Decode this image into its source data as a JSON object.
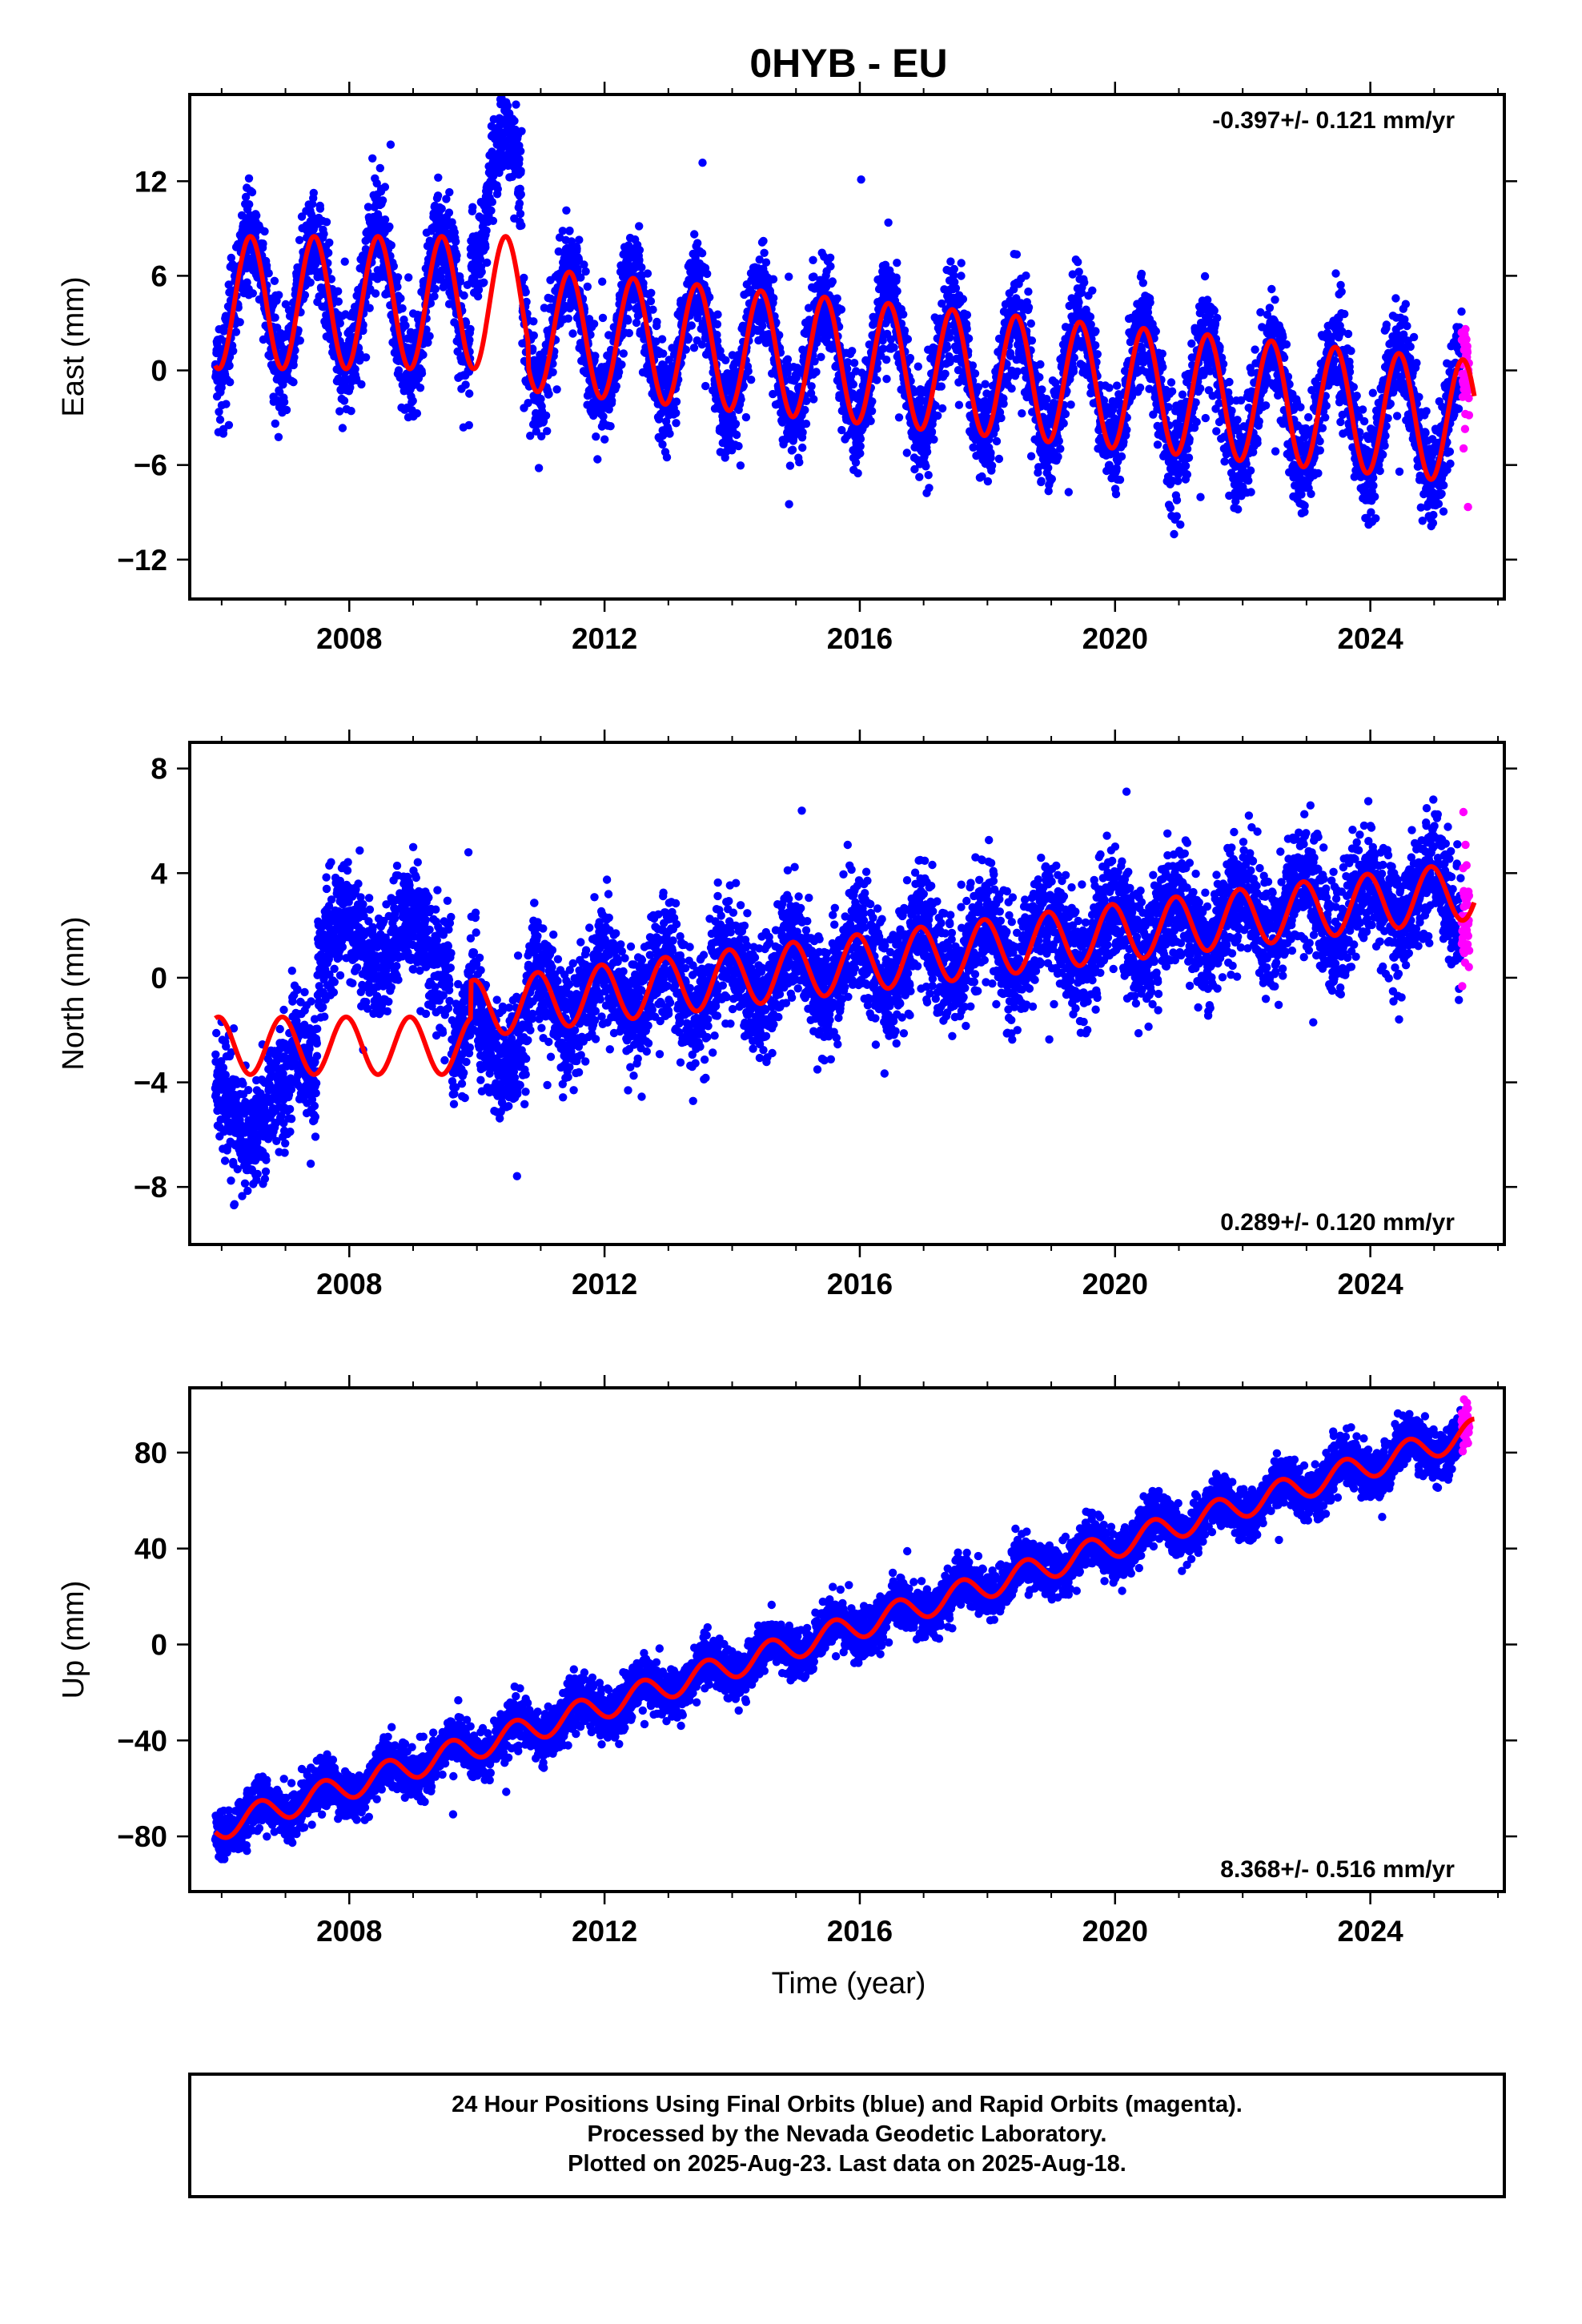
{
  "title": "0HYB - EU",
  "x_axis_label": "Time (year)",
  "footer": {
    "line1": "24 Hour Positions Using Final Orbits (blue) and Rapid Orbits (magenta).",
    "line2": "Processed by the Nevada Geodetic Laboratory.",
    "line3": "Plotted on 2025-Aug-23. Last data on 2025-Aug-18."
  },
  "colors": {
    "final_orbits": "#0000ff",
    "rapid_orbits": "#ff00ff",
    "model_fit": "#ff0000",
    "frame": "#000000"
  },
  "chart_data": [
    {
      "type": "scatter",
      "component": "east",
      "ylabel": "East (mm)",
      "rate_label": "-0.397+/- 0.121 mm/yr",
      "rate_placement": "top-right",
      "xlim": [
        2005.5,
        2026.1
      ],
      "ylim": [
        -14.5,
        17.5
      ],
      "x_ticks": [
        2008,
        2012,
        2016,
        2020,
        2024
      ],
      "y_ticks": [
        -12,
        -6,
        0,
        6,
        12
      ],
      "grid": false,
      "data_start": 2005.9,
      "data_end": 2025.55,
      "rapid_start": 2025.43,
      "model": {
        "segments": [
          {
            "from": 2005.9,
            "to": 2010.8,
            "offset": 4.3,
            "slope": 0.0,
            "annual_amplitude": 4.2,
            "peak_phase": 0.45
          },
          {
            "from": 2010.8,
            "to": 2025.63,
            "offset": 2.6,
            "slope": -0.397,
            "annual_amplitude": 3.9,
            "peak_phase": 0.45
          }
        ],
        "scatter_sigma": 1.6
      },
      "anomalies": [
        {
          "from": 2009.9,
          "to": 2010.7,
          "shift": 7.0
        }
      ]
    },
    {
      "type": "scatter",
      "component": "north",
      "ylabel": "North (mm)",
      "rate_label": "0.289+/- 0.120 mm/yr",
      "rate_placement": "bottom-right",
      "xlim": [
        2005.5,
        2026.1
      ],
      "ylim": [
        -10.2,
        9.0
      ],
      "x_ticks": [
        2008,
        2012,
        2016,
        2020,
        2024
      ],
      "y_ticks": [
        -8,
        -4,
        0,
        4,
        8
      ],
      "grid": false,
      "data_start": 2005.9,
      "data_end": 2025.55,
      "rapid_start": 2025.43,
      "model": {
        "segments": [
          {
            "from": 2005.9,
            "to": 2009.9,
            "offset": -2.6,
            "slope": 0.0,
            "annual_amplitude": 1.1,
            "peak_phase": 0.95
          },
          {
            "from": 2009.9,
            "to": 2025.63,
            "offset": -1.2,
            "slope": 0.289,
            "annual_amplitude": 1.1,
            "peak_phase": 0.95
          }
        ],
        "scatter_sigma": 1.1
      },
      "anomalies": [
        {
          "from": 2005.9,
          "to": 2007.1,
          "shift": -2.5
        },
        {
          "from": 2007.5,
          "to": 2009.6,
          "shift": 4.0
        },
        {
          "from": 2010.0,
          "to": 2010.8,
          "shift": -1.5
        }
      ]
    },
    {
      "type": "scatter",
      "component": "up",
      "ylabel": "Up (mm)",
      "rate_label": "8.368+/- 0.516 mm/yr",
      "rate_placement": "bottom-right",
      "xlim": [
        2005.5,
        2026.1
      ],
      "ylim": [
        -103,
        107
      ],
      "x_ticks": [
        2008,
        2012,
        2016,
        2020,
        2024
      ],
      "y_ticks": [
        -80,
        -40,
        0,
        40,
        80
      ],
      "grid": false,
      "data_start": 2005.9,
      "data_end": 2025.55,
      "rapid_start": 2025.43,
      "model": {
        "segments": [
          {
            "from": 2005.9,
            "to": 2025.63,
            "offset": -76.5,
            "slope": 8.368,
            "annual_amplitude": 5.5,
            "peak_phase": 0.6
          }
        ],
        "scatter_sigma": 5.0
      },
      "anomalies": []
    }
  ]
}
